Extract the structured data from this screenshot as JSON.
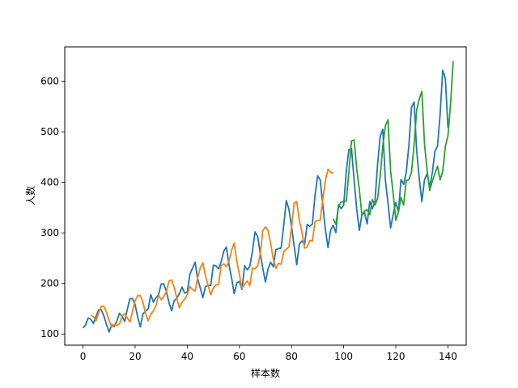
{
  "chart_data": {
    "type": "line",
    "title": "",
    "xlabel": "样本数",
    "ylabel": "人数",
    "xlim": [
      -7,
      147
    ],
    "ylim": [
      78,
      668
    ],
    "xticks": [
      0,
      20,
      40,
      60,
      80,
      100,
      120,
      140
    ],
    "yticks": [
      100,
      200,
      300,
      400,
      500,
      600
    ],
    "grid": false,
    "legend": "none",
    "series": [
      {
        "color": "#1f77b4",
        "x_start": 0,
        "values": [
          112,
          118,
          132,
          129,
          121,
          135,
          148,
          148,
          136,
          119,
          104,
          118,
          115,
          126,
          141,
          135,
          125,
          149,
          170,
          170,
          158,
          133,
          114,
          140,
          145,
          150,
          178,
          163,
          172,
          178,
          199,
          199,
          184,
          162,
          146,
          166,
          171,
          180,
          193,
          181,
          183,
          218,
          230,
          242,
          209,
          191,
          172,
          194,
          196,
          196,
          236,
          235,
          229,
          243,
          264,
          272,
          237,
          211,
          180,
          201,
          204,
          188,
          235,
          227,
          234,
          264,
          302,
          293,
          259,
          229,
          203,
          229,
          242,
          233,
          267,
          269,
          270,
          315,
          364,
          347,
          312,
          274,
          237,
          278,
          284,
          277,
          317,
          313,
          318,
          374,
          413,
          405,
          355,
          306,
          271,
          306,
          315,
          301,
          356,
          348,
          355,
          422,
          465,
          467,
          404,
          347,
          305,
          336,
          340,
          318,
          362,
          348,
          363,
          435,
          491,
          505,
          404,
          359,
          310,
          337,
          360,
          342,
          406,
          396,
          420,
          472,
          548,
          559,
          463,
          407,
          362,
          405,
          417,
          391,
          419,
          461,
          472,
          535,
          622,
          606,
          508
        ]
      },
      {
        "color": "#ff7f0e",
        "x_start": 3,
        "values": [
          137,
          134,
          126,
          142,
          155,
          155,
          143,
          127,
          114,
          119,
          117,
          120,
          136,
          140,
          132,
          124,
          145,
          166,
          176,
          176,
          163,
          141,
          126,
          139,
          146,
          156,
          177,
          168,
          174,
          184,
          205,
          207,
          192,
          170,
          152,
          163,
          169,
          178,
          194,
          188,
          185,
          212,
          231,
          241,
          214,
          196,
          178,
          191,
          197,
          198,
          235,
          239,
          233,
          244,
          266,
          280,
          244,
          218,
          190,
          199,
          205,
          196,
          230,
          230,
          234,
          259,
          305,
          312,
          305,
          279,
          248,
          230,
          240,
          238,
          263,
          268,
          272,
          311,
          359,
          362,
          325,
          301,
          270,
          272,
          285,
          284,
          322,
          325,
          325,
          367,
          404,
          426,
          420,
          418
        ]
      },
      {
        "color": "#2ca02c",
        "x_start": 96,
        "values": [
          328,
          317,
          352,
          361,
          362,
          363,
          421,
          482,
          484,
          427,
          386,
          335,
          343,
          346,
          336,
          366,
          355,
          368,
          412,
          472,
          512,
          524,
          422,
          378,
          325,
          341,
          370,
          355,
          404,
          405,
          420,
          474,
          543,
          565,
          580,
          476,
          424,
          384,
          402,
          418,
          432,
          405,
          422,
          471,
          492,
          555,
          640
        ]
      }
    ]
  }
}
